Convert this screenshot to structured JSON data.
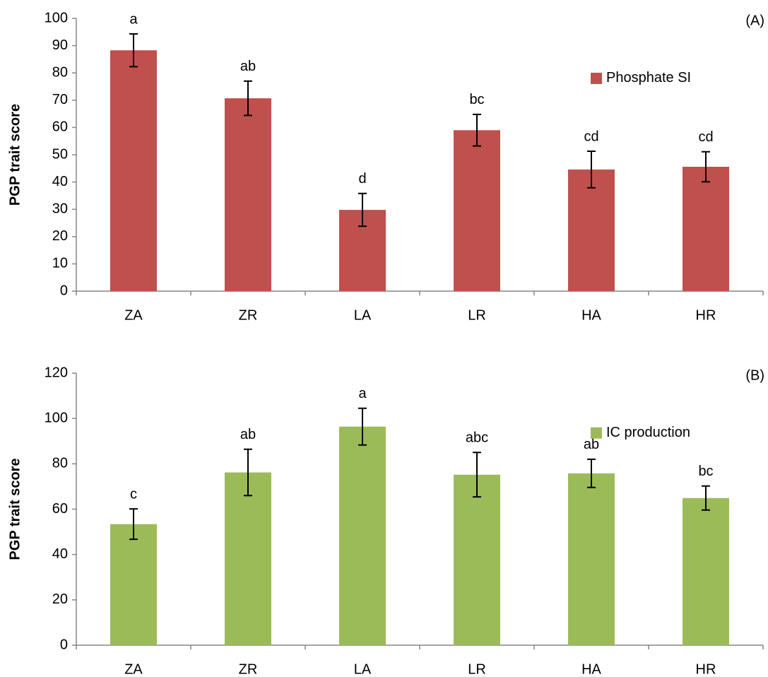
{
  "chart_data": [
    {
      "type": "bar",
      "panel_label": "(A)",
      "ylabel": "PGP trait score",
      "categories": [
        "ZA",
        "ZR",
        "LA",
        "LR",
        "HA",
        "HR"
      ],
      "series": [
        {
          "name": "Phosphate SI",
          "color": "#c0504d",
          "values": [
            88.3,
            70.7,
            29.8,
            59.0,
            44.6,
            45.6
          ],
          "errors": [
            6.0,
            6.3,
            6.0,
            5.8,
            6.7,
            5.5
          ],
          "group_letters": [
            "a",
            "ab",
            "d",
            "bc",
            "cd",
            "cd"
          ]
        }
      ],
      "ylim": [
        0,
        100
      ],
      "yticks": [
        0,
        10,
        20,
        30,
        40,
        50,
        60,
        70,
        80,
        90,
        100
      ],
      "grid": false,
      "legend": "upper right"
    },
    {
      "type": "bar",
      "panel_label": "(B)",
      "ylabel": "PGP trait score",
      "categories": [
        "ZA",
        "ZR",
        "LA",
        "LR",
        "HA",
        "HR"
      ],
      "series": [
        {
          "name": "IC production",
          "color": "#9bbb59",
          "values": [
            53.4,
            76.2,
            96.4,
            75.2,
            75.8,
            64.9
          ],
          "errors": [
            6.7,
            10.2,
            8.1,
            9.8,
            6.2,
            5.3
          ],
          "group_letters": [
            "c",
            "ab",
            "a",
            "abc",
            "ab",
            "bc"
          ]
        }
      ],
      "ylim": [
        0,
        120
      ],
      "yticks": [
        0,
        20,
        40,
        60,
        80,
        100,
        120
      ],
      "grid": false,
      "legend": "upper right"
    }
  ]
}
